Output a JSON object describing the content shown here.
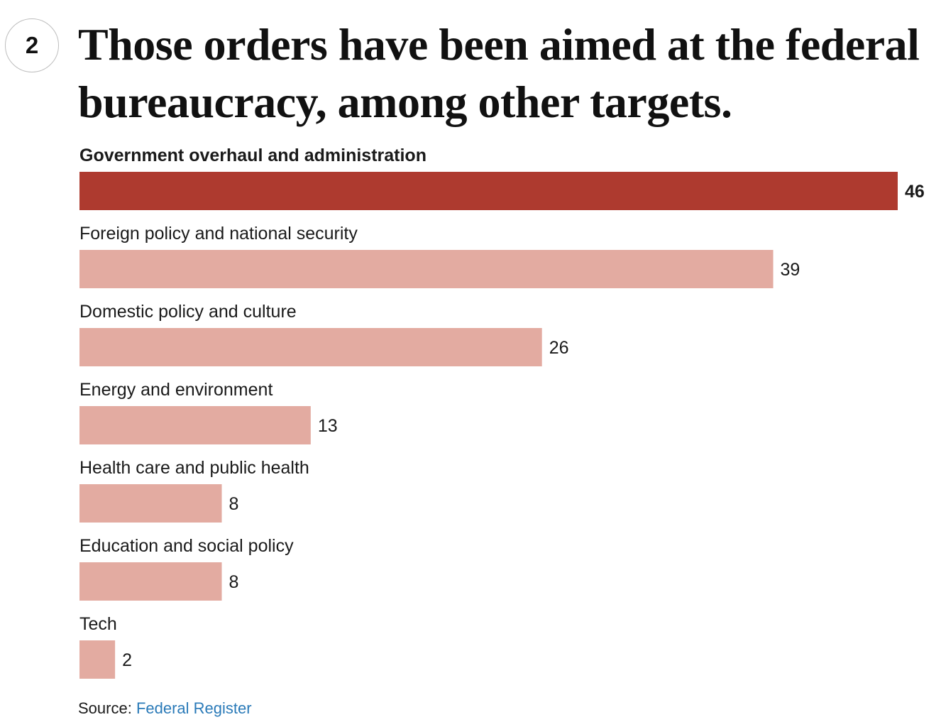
{
  "step": "2",
  "headline": "Those orders have been aimed at the federal bureaucracy, among other targets.",
  "source": {
    "prefix": "Source: ",
    "link_text": "Federal Register"
  },
  "colors": {
    "highlight_bar": "#ae3a2f",
    "bar": "#e3aba1",
    "text": "#1a1a1a",
    "link": "#2a7ab8"
  },
  "chart_data": {
    "type": "bar",
    "orientation": "horizontal",
    "categories": [
      "Government overhaul and administration",
      "Foreign policy and national security",
      "Domestic policy and culture",
      "Energy and environment",
      "Health care and public health",
      "Education and social policy",
      "Tech"
    ],
    "values": [
      46,
      39,
      26,
      13,
      8,
      8,
      2
    ],
    "highlighted": [
      true,
      false,
      false,
      false,
      false,
      false,
      false
    ],
    "xlim": [
      0,
      46
    ],
    "grid": false,
    "legend": "none"
  }
}
